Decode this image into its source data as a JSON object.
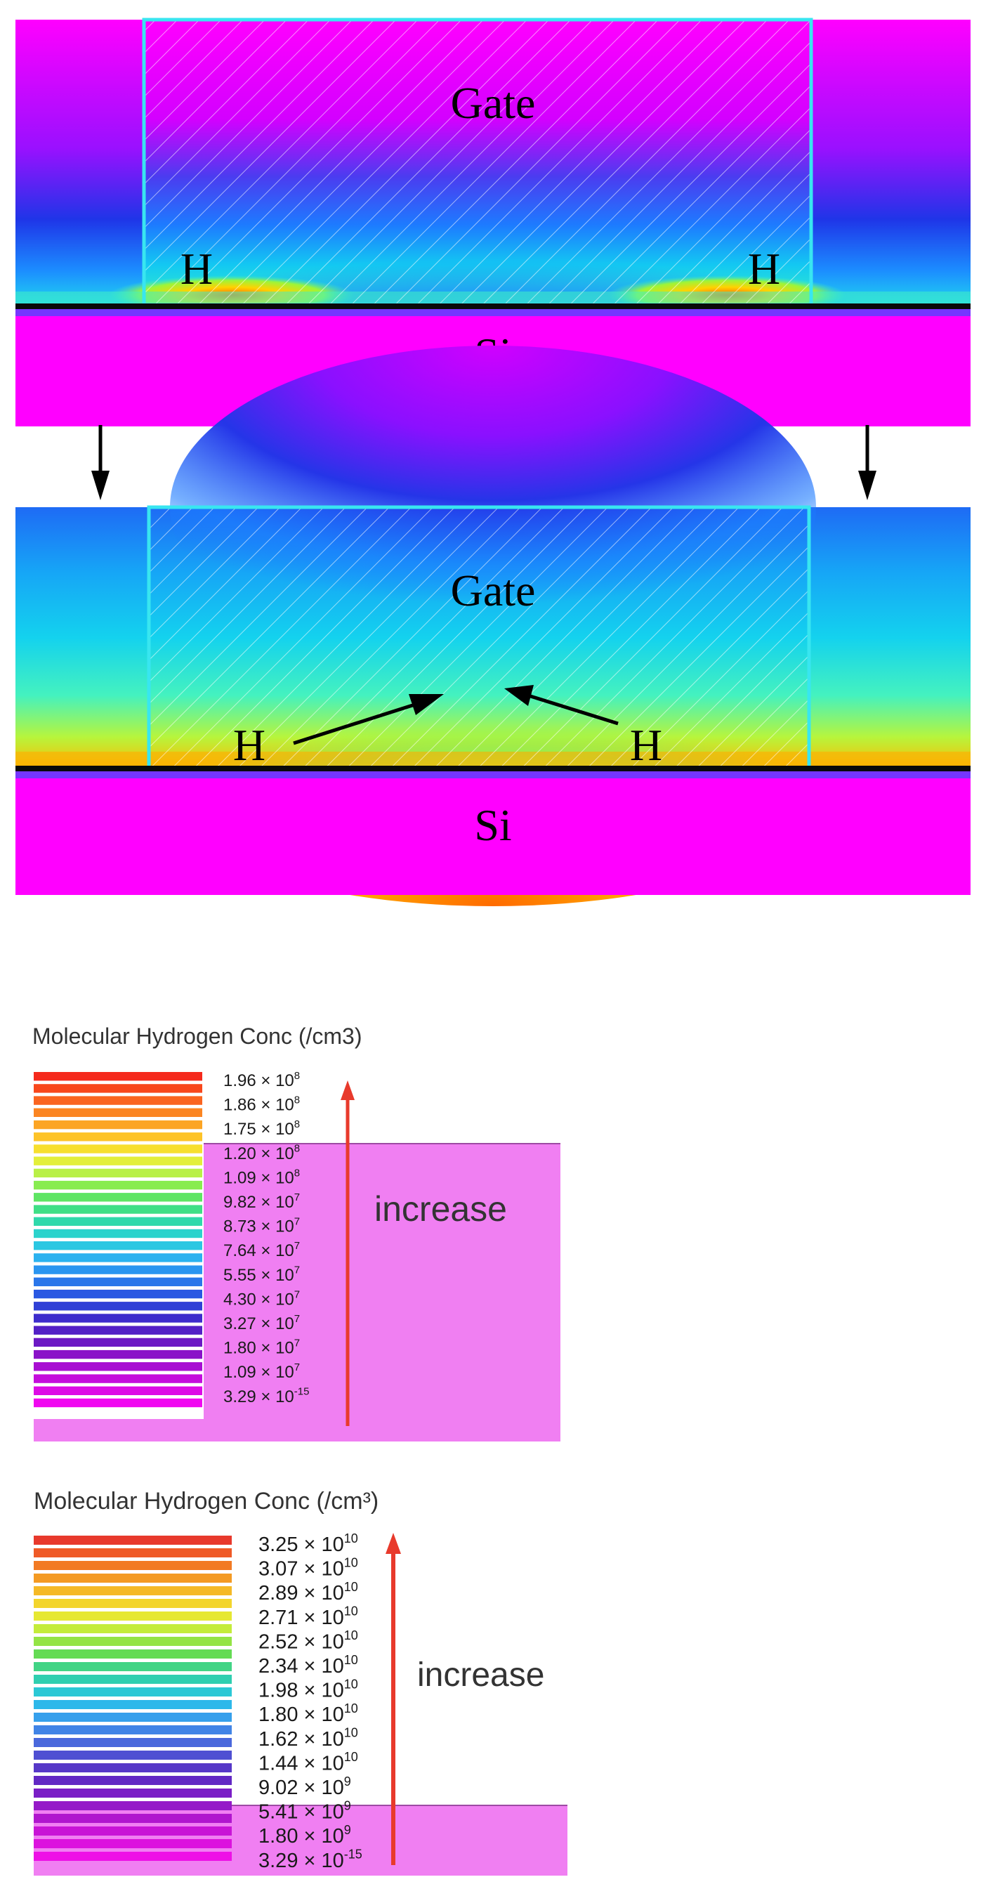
{
  "simulation_panels": [
    {
      "gate_label": "Gate",
      "substrate_label": "Si",
      "left_h_label": "H",
      "right_h_label": "H"
    },
    {
      "gate_label": "Gate",
      "substrate_label": "Si",
      "left_h_label": "H",
      "right_h_label": "H"
    }
  ],
  "legends": [
    {
      "title": "Molecular Hydrogen Conc (/cm3)",
      "trend_label": "increase",
      "ticks": [
        {
          "mantissa": "1.96",
          "exponent": "8"
        },
        {
          "mantissa": "1.86",
          "exponent": "8"
        },
        {
          "mantissa": "1.75",
          "exponent": "8"
        },
        {
          "mantissa": "1.20",
          "exponent": "8"
        },
        {
          "mantissa": "1.09",
          "exponent": "8"
        },
        {
          "mantissa": "9.82",
          "exponent": "7"
        },
        {
          "mantissa": "8.73",
          "exponent": "7"
        },
        {
          "mantissa": "7.64",
          "exponent": "7"
        },
        {
          "mantissa": "5.55",
          "exponent": "7"
        },
        {
          "mantissa": "4.30",
          "exponent": "7"
        },
        {
          "mantissa": "3.27",
          "exponent": "7"
        },
        {
          "mantissa": "1.80",
          "exponent": "7"
        },
        {
          "mantissa": "1.09",
          "exponent": "7"
        },
        {
          "mantissa": "3.29",
          "exponent": "-15"
        }
      ]
    },
    {
      "title": "Molecular Hydrogen Conc (/cm³)",
      "trend_label": "increase",
      "ticks": [
        {
          "mantissa": "3.25",
          "exponent": "10"
        },
        {
          "mantissa": "3.07",
          "exponent": "10"
        },
        {
          "mantissa": "2.89",
          "exponent": "10"
        },
        {
          "mantissa": "2.71",
          "exponent": "10"
        },
        {
          "mantissa": "2.52",
          "exponent": "10"
        },
        {
          "mantissa": "2.34",
          "exponent": "10"
        },
        {
          "mantissa": "1.98",
          "exponent": "10"
        },
        {
          "mantissa": "1.80",
          "exponent": "10"
        },
        {
          "mantissa": "1.62",
          "exponent": "10"
        },
        {
          "mantissa": "1.44",
          "exponent": "10"
        },
        {
          "mantissa": "9.02",
          "exponent": "9"
        },
        {
          "mantissa": "5.41",
          "exponent": "9"
        },
        {
          "mantissa": "1.80",
          "exponent": "9"
        },
        {
          "mantissa": "3.29",
          "exponent": "-15"
        }
      ]
    }
  ],
  "colors": {
    "magenta": "#ff00ff",
    "legend_highlight": "#f07ff2",
    "arrow_red": "#e83a2c",
    "gate_outline": "#38e6f0"
  }
}
